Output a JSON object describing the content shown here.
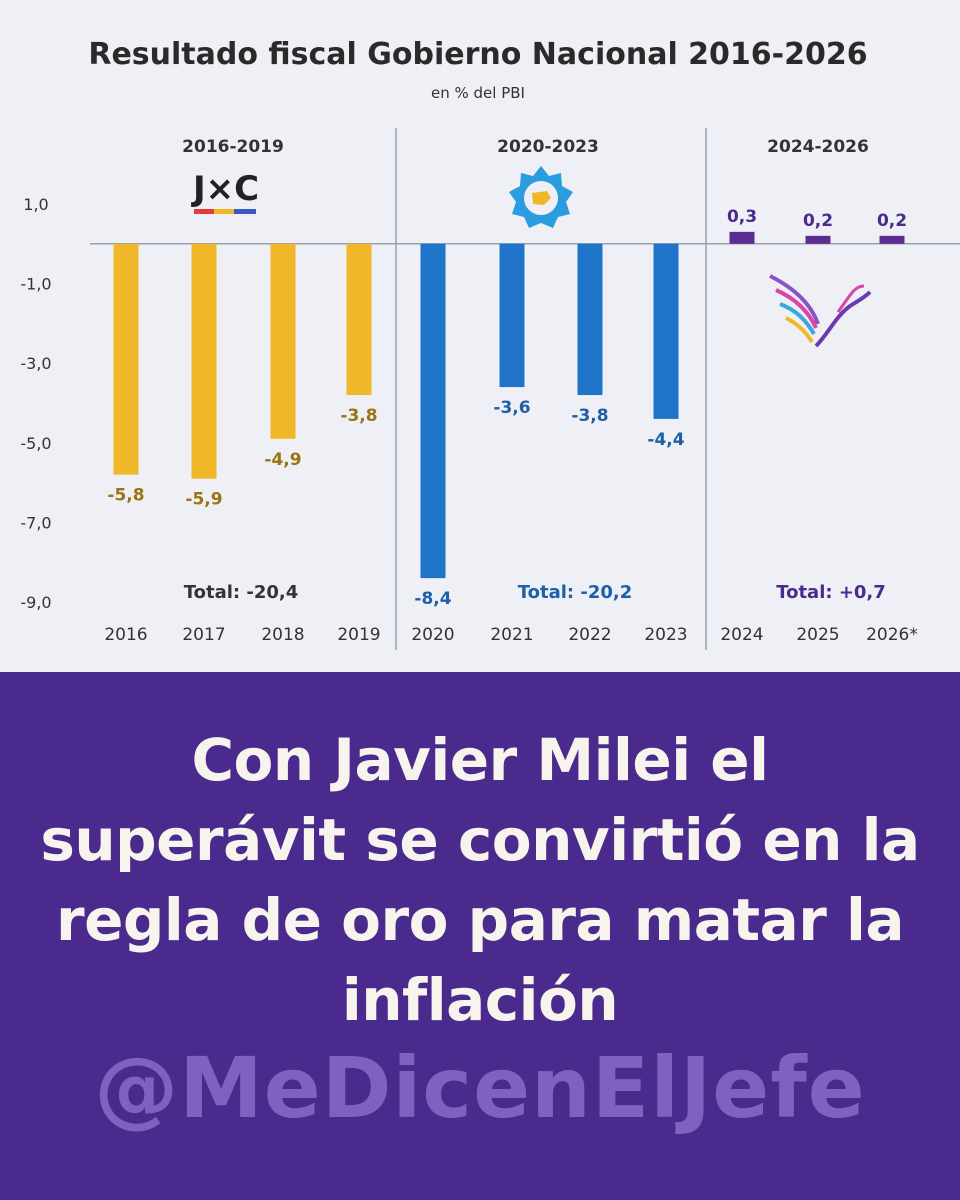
{
  "chart_data": {
    "type": "bar",
    "title": "Resultado fiscal Gobierno Nacional 2016-2026",
    "subtitle": "en % del PBI",
    "ylabel": "",
    "xlabel": "",
    "ylim": [
      -9.0,
      1.0
    ],
    "y_ticks": [
      "1,0",
      "-1,0",
      "-3,0",
      "-5,0",
      "-7,0",
      "-9,0"
    ],
    "y_tick_values": [
      1.0,
      -1.0,
      -3.0,
      -5.0,
      -7.0,
      -9.0
    ],
    "grid": false,
    "categories": [
      "2016",
      "2017",
      "2018",
      "2019",
      "2020",
      "2021",
      "2022",
      "2023",
      "2024",
      "2025",
      "2026*"
    ],
    "values": [
      -5.8,
      -5.9,
      -4.9,
      -3.8,
      -8.4,
      -3.6,
      -3.8,
      -4.4,
      0.3,
      0.2,
      0.2
    ],
    "value_labels": [
      "-5,8",
      "-5,9",
      "-4,9",
      "-3,8",
      "-8,4",
      "-3,6",
      "-3,8",
      "-4,4",
      "0,3",
      "0,2",
      "0,2"
    ],
    "periods": [
      {
        "label": "2016-2019",
        "logo_text": "J×C",
        "total": "Total: -20,4",
        "color": "#f0b829",
        "label_color": "#9a7410",
        "start": 0,
        "end": 3
      },
      {
        "label": "2020-2023",
        "logo_text": "",
        "total": "Total: -20,2",
        "color": "#1f73c9",
        "label_color": "#1f5fa8",
        "start": 4,
        "end": 7
      },
      {
        "label": "2024-2026",
        "logo_text": "",
        "total": "Total: +0,7",
        "color": "#5b2d8f",
        "label_color": "#4a2a8c",
        "start": 8,
        "end": 10
      }
    ]
  },
  "caption": {
    "headline": "Con Javier Milei el superávit se convirtió en la regla de oro para matar la inflación",
    "handle": "@MeDicenElJefe"
  },
  "colors": {
    "caption_background": "#4a2a8c",
    "headline_text": "#f7f4ee",
    "handle_text": "#7f62bf",
    "chart_background": "#eef0f6"
  }
}
